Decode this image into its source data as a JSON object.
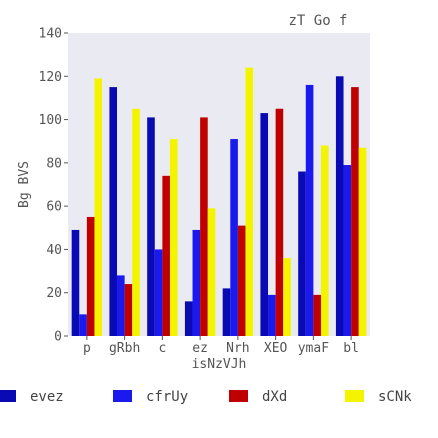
{
  "chart_data": {
    "type": "bar",
    "title": "zT  Go  f",
    "xlabel": "isNzVJh",
    "ylabel": "Bg BVS",
    "ylim": [
      0,
      140
    ],
    "yticks": [
      0,
      20,
      40,
      60,
      80,
      100,
      120,
      140
    ],
    "categories": [
      "p",
      "gRbh",
      "c",
      "ez",
      "Nrh",
      "XEO",
      "ymaF",
      "bl"
    ],
    "grid": false,
    "legend_position": "bottom",
    "series": [
      {
        "name": "evez",
        "color": "#0a0ab4",
        "values": [
          49,
          115,
          101,
          16,
          22,
          103,
          76,
          120
        ]
      },
      {
        "name": "cfrUy",
        "color": "#1a1aee",
        "values": [
          10,
          28,
          40,
          49,
          91,
          19,
          116,
          79
        ]
      },
      {
        "name": "dXd",
        "color": "#c00000",
        "values": [
          55,
          24,
          74,
          101,
          51,
          105,
          19,
          115
        ]
      },
      {
        "name": "sCNk",
        "color": "#f4f400",
        "values": [
          119,
          105,
          91,
          59,
          124,
          36,
          88,
          87
        ]
      }
    ],
    "plot_background": "#eaeaf2"
  }
}
